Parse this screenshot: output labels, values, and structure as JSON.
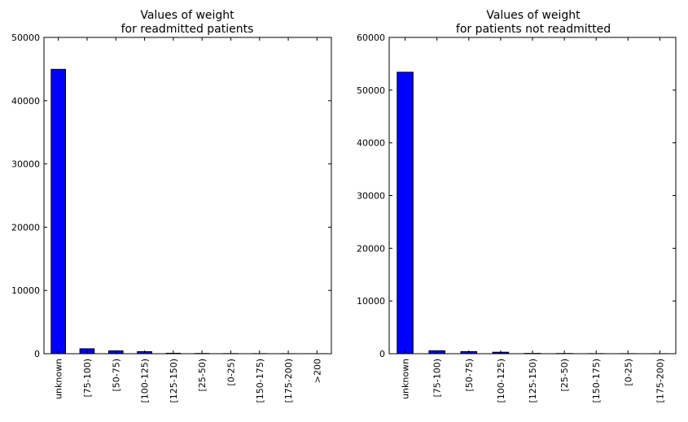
{
  "chart_data": [
    {
      "type": "bar",
      "title_line1": "Values of weight",
      "title_line2": "for readmitted patients",
      "categories": [
        "unknown",
        "[75-100)",
        "[50-75)",
        "[100-125)",
        "[125-150)",
        "[25-50)",
        "[0-25)",
        "[150-175)",
        "[175-200)",
        ">200"
      ],
      "values": [
        44950,
        780,
        450,
        330,
        70,
        40,
        20,
        15,
        10,
        2
      ],
      "ylim": [
        0,
        50000
      ],
      "yticks": [
        "0",
        "10000",
        "20000",
        "30000",
        "40000",
        "50000"
      ],
      "ytick_values": [
        0,
        10000,
        20000,
        30000,
        40000,
        50000
      ],
      "bar_color": "#0000ff",
      "grid": false
    },
    {
      "type": "bar",
      "title_line1": "Values of weight",
      "title_line2": "for patients not readmitted",
      "categories": [
        "unknown",
        "[75-100)",
        "[50-75)",
        "[100-125)",
        "[125-150)",
        "[25-50)",
        "[150-175)",
        "[0-25)",
        "[175-200)"
      ],
      "values": [
        53400,
        560,
        400,
        280,
        60,
        40,
        20,
        15,
        10
      ],
      "ylim": [
        0,
        60000
      ],
      "yticks": [
        "0",
        "10000",
        "20000",
        "30000",
        "40000",
        "50000",
        "60000"
      ],
      "ytick_values": [
        0,
        10000,
        20000,
        30000,
        40000,
        50000,
        60000
      ],
      "bar_color": "#0000ff",
      "grid": false
    }
  ]
}
